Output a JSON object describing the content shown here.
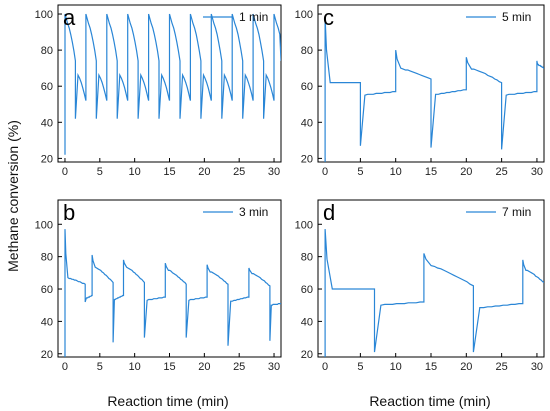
{
  "figure": {
    "ylabel": "Methane conversion (%)",
    "xlabel": "Reaction time (min)"
  },
  "style": {
    "line_color": "#2a86d6",
    "axis_color": "#000000"
  },
  "chart_data": [
    {
      "type": "line",
      "panel": "a",
      "legend": "1 min",
      "legend_position": "top-right",
      "xlim": [
        -1,
        31
      ],
      "ylim": [
        18,
        105
      ],
      "xticks": [
        0,
        5,
        10,
        15,
        20,
        25,
        30
      ],
      "yticks": [
        20,
        40,
        60,
        80,
        100
      ],
      "grid": false,
      "period": 1.5,
      "high": [
        100,
        96,
        74
      ],
      "low": [
        42,
        67,
        52
      ]
    },
    {
      "type": "line",
      "panel": "b",
      "legend": "3 min",
      "legend_position": "top-right",
      "xlim": [
        -1,
        31
      ],
      "ylim": [
        18,
        115
      ],
      "xticks": [
        0,
        5,
        10,
        15,
        20,
        25,
        30
      ],
      "yticks": [
        20,
        40,
        60,
        80,
        100
      ],
      "grid": false,
      "cycles": [
        {
          "start": 0.0,
          "peak": 97,
          "plateau": 67,
          "end": 63
        },
        {
          "start": 2.9,
          "drop": 52,
          "plateau": 54,
          "end": 56
        },
        {
          "start": 3.9,
          "peak": 81,
          "plateau": 74,
          "end": 64
        },
        {
          "start": 6.9,
          "drop": 27,
          "plateau": 53,
          "end": 56
        },
        {
          "start": 8.4,
          "peak": 78,
          "plateau": 74,
          "end": 64
        },
        {
          "start": 11.4,
          "drop": 30,
          "plateau": 53,
          "end": 55
        },
        {
          "start": 14.4,
          "peak": 76,
          "plateau": 72,
          "end": 63
        },
        {
          "start": 17.4,
          "drop": 30,
          "plateau": 53,
          "end": 55
        },
        {
          "start": 20.4,
          "peak": 75,
          "plateau": 71,
          "end": 63
        },
        {
          "start": 23.4,
          "drop": 25,
          "plateau": 52,
          "end": 55
        },
        {
          "start": 26.4,
          "peak": 73,
          "plateau": 70,
          "end": 62
        },
        {
          "start": 29.4,
          "drop": 28,
          "plateau": 50,
          "end": 51
        }
      ]
    },
    {
      "type": "line",
      "panel": "c",
      "legend": "5 min",
      "legend_position": "top-right",
      "xlim": [
        -1,
        31
      ],
      "ylim": [
        18,
        105
      ],
      "xticks": [
        0,
        5,
        10,
        15,
        20,
        25,
        30
      ],
      "yticks": [
        20,
        40,
        60,
        80,
        100
      ],
      "grid": false,
      "cycles": [
        {
          "start": 0.0,
          "peak": 98,
          "plateau": 62,
          "end": 62
        },
        {
          "start": 5.0,
          "drop": 27,
          "plateau": 55,
          "end": 57
        },
        {
          "start": 10.0,
          "peak": 80,
          "plateau": 70,
          "end": 64
        },
        {
          "start": 15.0,
          "drop": 26,
          "plateau": 55,
          "end": 58
        },
        {
          "start": 20.0,
          "peak": 76,
          "plateau": 70,
          "end": 62
        },
        {
          "start": 25.0,
          "drop": 25,
          "plateau": 55,
          "end": 57
        },
        {
          "start": 30.0,
          "peak": 74,
          "plateau": 72,
          "end": 70
        }
      ]
    },
    {
      "type": "line",
      "panel": "d",
      "legend": "7 min",
      "legend_position": "top-right",
      "xlim": [
        -1,
        31
      ],
      "ylim": [
        18,
        115
      ],
      "xticks": [
        0,
        5,
        10,
        15,
        20,
        25,
        30
      ],
      "yticks": [
        20,
        40,
        60,
        80,
        100
      ],
      "grid": false,
      "cycles": [
        {
          "start": 0.0,
          "peak": 97,
          "plateau": 60,
          "end": 60
        },
        {
          "start": 7.0,
          "drop": 21,
          "plateau": 50,
          "end": 52
        },
        {
          "start": 14.0,
          "peak": 82,
          "plateau": 75,
          "end": 62
        },
        {
          "start": 21.0,
          "drop": 21,
          "plateau": 48,
          "end": 51
        },
        {
          "start": 28.0,
          "peak": 78,
          "plateau": 72,
          "end": 64
        }
      ]
    }
  ]
}
